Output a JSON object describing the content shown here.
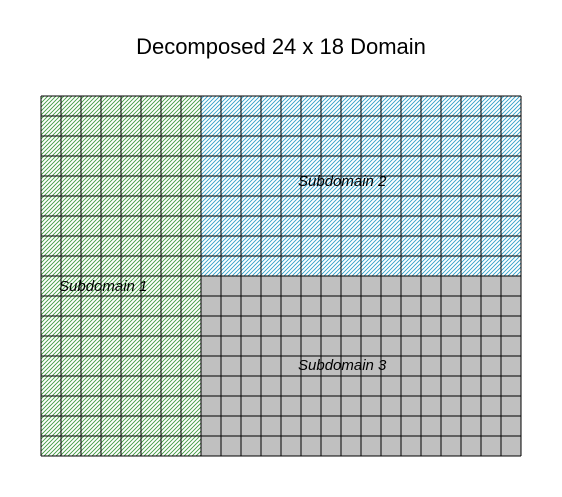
{
  "title": "Decomposed 24 x 18 Domain",
  "domain": {
    "cols": 24,
    "rows": 18
  },
  "subdomains": [
    {
      "label": "Subdomain 1",
      "col_start": 0,
      "col_end": 8,
      "row_start": 0,
      "row_end": 18,
      "fill": "#ffffff",
      "hatch_color": "#3f9a3f",
      "pattern": "diagonal-hatch"
    },
    {
      "label": "Subdomain 2",
      "col_start": 8,
      "col_end": 24,
      "row_start": 0,
      "row_end": 9,
      "fill": "#ffffff",
      "hatch_color": "#2f9fc8",
      "pattern": "diagonal-hatch"
    },
    {
      "label": "Subdomain 3",
      "col_start": 8,
      "col_end": 24,
      "row_start": 9,
      "row_end": 18,
      "fill": "#c0c0c0",
      "hatch_color": "",
      "pattern": "solid"
    }
  ],
  "grid_line_color": "#000000"
}
